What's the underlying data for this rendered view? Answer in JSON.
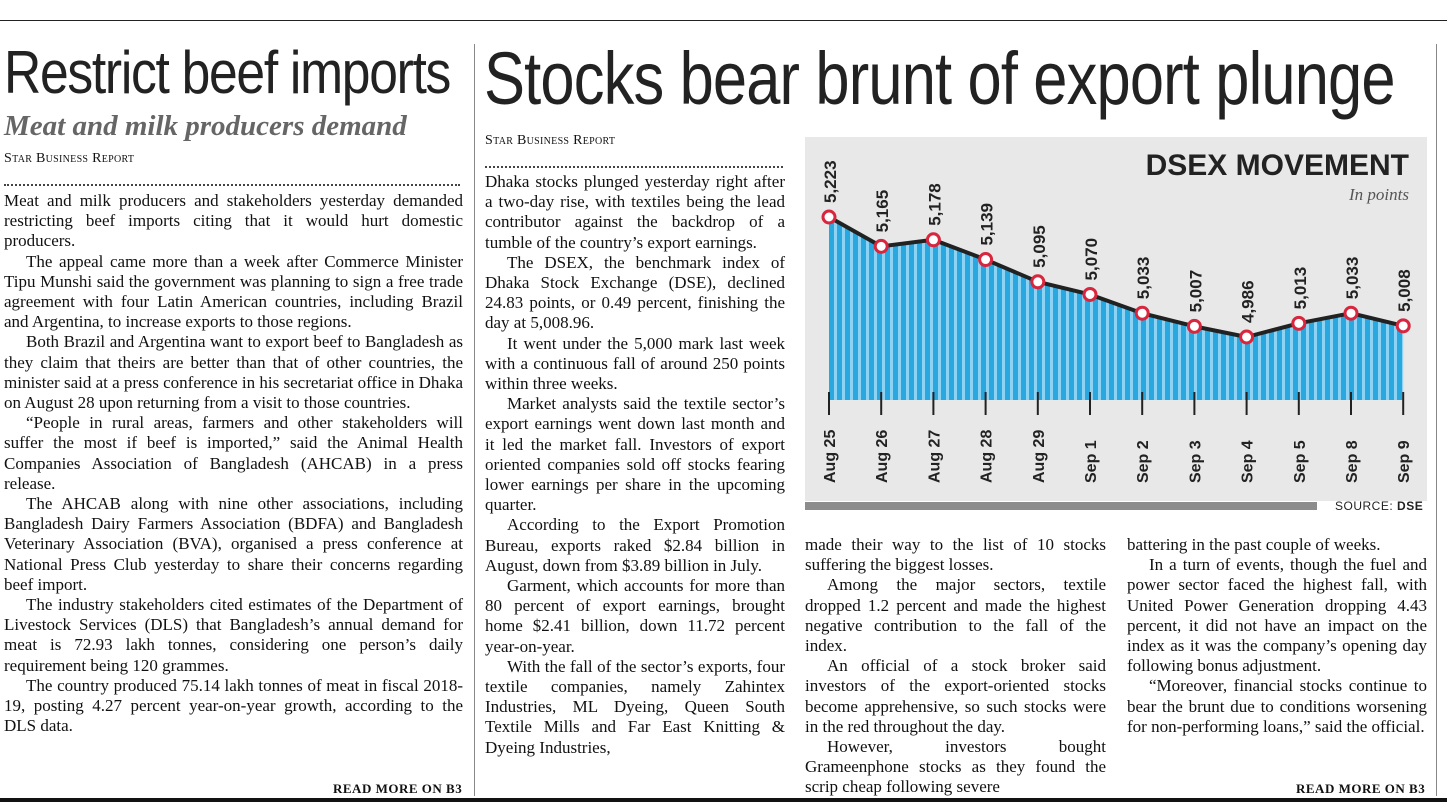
{
  "left_article": {
    "headline": "Restrict beef imports",
    "subhead": "Meat and milk producers demand",
    "byline": "Star Business Report",
    "paragraphs": [
      "Meat and milk producers and stakeholders yesterday demanded restricting beef imports citing that it would hurt domestic producers.",
      "The appeal came more than a week after Commerce Minister Tipu Munshi said the government was planning to sign a free trade agreement with four Latin American countries, including Brazil and Argentina, to increase exports to those regions.",
      "Both Brazil and Argentina want to export beef to Bangladesh as they claim that theirs are better than that of other countries, the minister said at a press conference in his secretariat office in Dhaka on August 28 upon returning from a visit to those countries.",
      "“People in rural areas, farmers and other stakeholders will suffer the most if beef is imported,” said the Animal Health Companies Association of Bangladesh (AHCAB) in a press release.",
      "The AHCAB along with nine other associations, including Bangladesh Dairy Farmers Association (BDFA) and Bangladesh Veterinary Association (BVA), organised a press conference at National Press Club yesterday to share their concerns regarding beef import.",
      "The industry stakeholders cited estimates of the Department of Livestock Services (DLS) that Bangladesh’s annual demand for meat is 72.93 lakh tonnes, considering one person’s daily requirement being 120 grammes.",
      "The country produced 75.14 lakh tonnes of meat in fiscal 2018-19, posting 4.27 percent year-on-year growth, according to the DLS data."
    ],
    "read_more": "READ MORE ON B3"
  },
  "right_article": {
    "headline": "Stocks bear brunt of export plunge",
    "byline": "Star Business Report",
    "col1": [
      "Dhaka stocks plunged yesterday right after a two-day rise, with textiles being the lead contributor against the backdrop of a tumble of the country’s export earnings.",
      "The DSEX, the benchmark index of Dhaka Stock Exchange (DSE), declined 24.83 points, or 0.49 percent, finishing the day at 5,008.96.",
      "It went under the 5,000 mark last week with a continuous fall of around 250 points within three weeks.",
      "Market analysts said the textile sector’s export earnings went down last month and it led the market fall. Investors of export oriented companies sold off stocks fearing lower earnings per share in the upcoming quarter.",
      "According to the Export Promotion Bureau, exports raked $2.84 billion in August, down from $3.89 billion in July.",
      "Garment, which accounts for more than 80 percent of export earnings, brought home $2.41 billion, down 11.72 percent year-on-year.",
      "With the fall of the sector’s exports, four textile companies, namely Zahintex Industries, ML Dyeing, Queen South Textile Mills and Far East Knitting & Dyeing Industries,"
    ],
    "col2": [
      "made their way to the list of 10 stocks suffering the biggest losses.",
      "Among the major sectors, textile dropped 1.2 percent and made the highest negative contribution to the fall of the index.",
      "An official of a stock broker said investors of the export-oriented stocks become apprehensive, so such stocks were in the red throughout the day.",
      "However, investors bought Grameenphone stocks as they found the scrip cheap following severe"
    ],
    "col3": [
      "battering in the past couple of weeks.",
      "In a turn of events, though the fuel and power sector faced the highest fall, with United Power Generation dropping 4.43 percent, it did not have an impact on the index as it was the company’s opening day following bonus adjustment.",
      "“Moreover, financial stocks continue to bear the brunt due to conditions worsening for non-performing loans,” said the official."
    ],
    "read_more": "READ MORE ON B3"
  },
  "chart": {
    "source_label": "SOURCE:",
    "source_value": "DSE"
  },
  "chart_data": {
    "type": "area",
    "title": "DSEX MOVEMENT",
    "subtitle": "In points",
    "categories": [
      "Aug 25",
      "Aug 26",
      "Aug 27",
      "Aug 28",
      "Aug 29",
      "Sep 1",
      "Sep 2",
      "Sep 3",
      "Sep 4",
      "Sep 5",
      "Sep 8",
      "Sep 9"
    ],
    "values": [
      5223,
      5165,
      5178,
      5139,
      5095,
      5070,
      5033,
      5007,
      4986,
      5013,
      5033,
      5008
    ],
    "value_labels": [
      "5,223",
      "5,165",
      "5,178",
      "5,139",
      "5,095",
      "5,070",
      "5,033",
      "5,007",
      "4,986",
      "5,013",
      "5,033",
      "5,008"
    ],
    "colors": {
      "fill": "#29a8e0",
      "stripe": "#8fd3f4",
      "line": "#222222",
      "marker_edge": "#d7263d",
      "marker_fill": "#ffffff"
    }
  }
}
